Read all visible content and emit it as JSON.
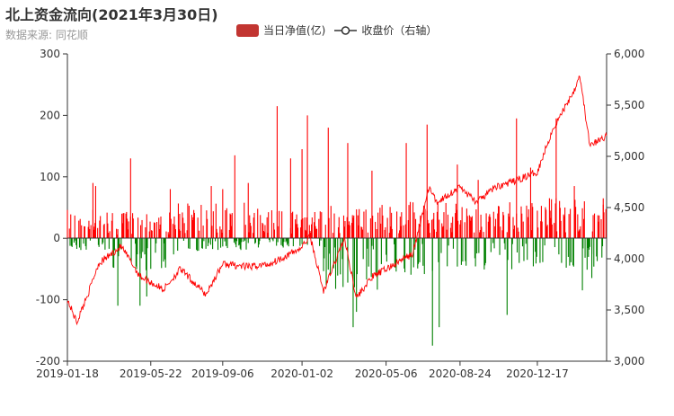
{
  "title": "北上资金流向(2021年3月30日)",
  "subtitle": "数据来源: 同花顺",
  "legend": [
    {
      "name": "当日净值(亿)",
      "color": "#c23531",
      "kind": "bar"
    },
    {
      "name": "收盘价（右轴）",
      "color": "#333333",
      "kind": "line"
    }
  ],
  "chart_data": {
    "type": "bar+line",
    "x_start": "2019-01-18",
    "x_end": "2021-03-30",
    "x_tick_labels": [
      "2019-01-18",
      "2019-05-22",
      "2019-09-06",
      "2020-01-02",
      "2020-05-06",
      "2020-08-24",
      "2020-12-17"
    ],
    "ylim_left": [
      -200,
      300
    ],
    "y_ticks_left": [
      -200,
      -100,
      0,
      100,
      200,
      300
    ],
    "ylim_right": [
      3000,
      6000
    ],
    "y_ticks_right": [
      "3,000",
      "3,500",
      "4,000",
      "4,500",
      "5,000",
      "5,500",
      "6,000"
    ],
    "positive_color": "#ff0000",
    "negative_color": "#008000",
    "close_line_color": "#ff0000",
    "close_keypoints": [
      [
        "2019-01-18",
        3600
      ],
      [
        "2019-02-01",
        3380
      ],
      [
        "2019-02-20",
        3700
      ],
      [
        "2019-03-05",
        3950
      ],
      [
        "2019-04-08",
        4120
      ],
      [
        "2019-05-06",
        3830
      ],
      [
        "2019-06-10",
        3700
      ],
      [
        "2019-07-05",
        3900
      ],
      [
        "2019-08-12",
        3650
      ],
      [
        "2019-09-06",
        3950
      ],
      [
        "2019-10-15",
        3920
      ],
      [
        "2019-11-15",
        3950
      ],
      [
        "2019-12-31",
        4100
      ],
      [
        "2020-01-14",
        4220
      ],
      [
        "2020-02-03",
        3680
      ],
      [
        "2020-03-05",
        4200
      ],
      [
        "2020-03-23",
        3620
      ],
      [
        "2020-04-15",
        3820
      ],
      [
        "2020-05-06",
        3900
      ],
      [
        "2020-06-15",
        4050
      ],
      [
        "2020-07-09",
        4700
      ],
      [
        "2020-07-20",
        4550
      ],
      [
        "2020-08-24",
        4700
      ],
      [
        "2020-09-18",
        4550
      ],
      [
        "2020-10-15",
        4700
      ],
      [
        "2020-11-10",
        4750
      ],
      [
        "2020-12-17",
        4850
      ],
      [
        "2021-01-08",
        5250
      ],
      [
        "2021-02-10",
        5650
      ],
      [
        "2021-02-18",
        5800
      ],
      [
        "2021-03-05",
        5100
      ],
      [
        "2021-03-30",
        5200
      ]
    ],
    "flow_segments": [
      {
        "from": "2019-01-18",
        "to": "2019-03-20",
        "pos": 45,
        "neg": -20,
        "spikes": [
          [
            "2019-02-25",
            90
          ],
          [
            "2019-03-01",
            85
          ],
          [
            "2019-04-03",
            -110
          ]
        ]
      },
      {
        "from": "2019-03-20",
        "to": "2019-06-30",
        "pos": 40,
        "neg": -50,
        "spikes": [
          [
            "2019-04-22",
            130
          ],
          [
            "2019-05-06",
            -110
          ],
          [
            "2019-05-16",
            -95
          ],
          [
            "2019-06-20",
            80
          ]
        ]
      },
      {
        "from": "2019-06-30",
        "to": "2019-10-20",
        "pos": 55,
        "neg": -20,
        "spikes": [
          [
            "2019-08-20",
            85
          ],
          [
            "2019-09-06",
            80
          ],
          [
            "2019-09-24",
            135
          ],
          [
            "2019-10-14",
            90
          ]
        ]
      },
      {
        "from": "2019-10-20",
        "to": "2020-01-31",
        "pos": 45,
        "neg": -15,
        "spikes": [
          [
            "2019-11-26",
            215
          ],
          [
            "2019-12-16",
            130
          ],
          [
            "2020-01-02",
            145
          ],
          [
            "2020-01-10",
            200
          ]
        ]
      },
      {
        "from": "2020-01-31",
        "to": "2020-05-01",
        "pos": 50,
        "neg": -80,
        "spikes": [
          [
            "2020-02-10",
            180
          ],
          [
            "2020-03-10",
            155
          ],
          [
            "2020-03-18",
            -145
          ],
          [
            "2020-03-23",
            -120
          ],
          [
            "2020-04-15",
            110
          ]
        ]
      },
      {
        "from": "2020-05-01",
        "to": "2020-08-31",
        "pos": 55,
        "neg": -60,
        "spikes": [
          [
            "2020-06-05",
            155
          ],
          [
            "2020-07-06",
            185
          ],
          [
            "2020-07-14",
            -175
          ],
          [
            "2020-07-24",
            -145
          ],
          [
            "2020-08-20",
            120
          ]
        ]
      },
      {
        "from": "2020-08-31",
        "to": "2020-12-31",
        "pos": 55,
        "neg": -50,
        "spikes": [
          [
            "2020-09-20",
            95
          ],
          [
            "2020-11-02",
            -125
          ],
          [
            "2020-11-16",
            195
          ],
          [
            "2020-12-07",
            115
          ]
        ]
      },
      {
        "from": "2020-12-31",
        "to": "2021-03-30",
        "pos": 60,
        "neg": -50,
        "spikes": [
          [
            "2021-01-14",
            195
          ],
          [
            "2021-02-10",
            85
          ],
          [
            "2021-02-22",
            -85
          ],
          [
            "2021-03-08",
            -65
          ],
          [
            "2021-03-25",
            65
          ]
        ]
      }
    ]
  }
}
